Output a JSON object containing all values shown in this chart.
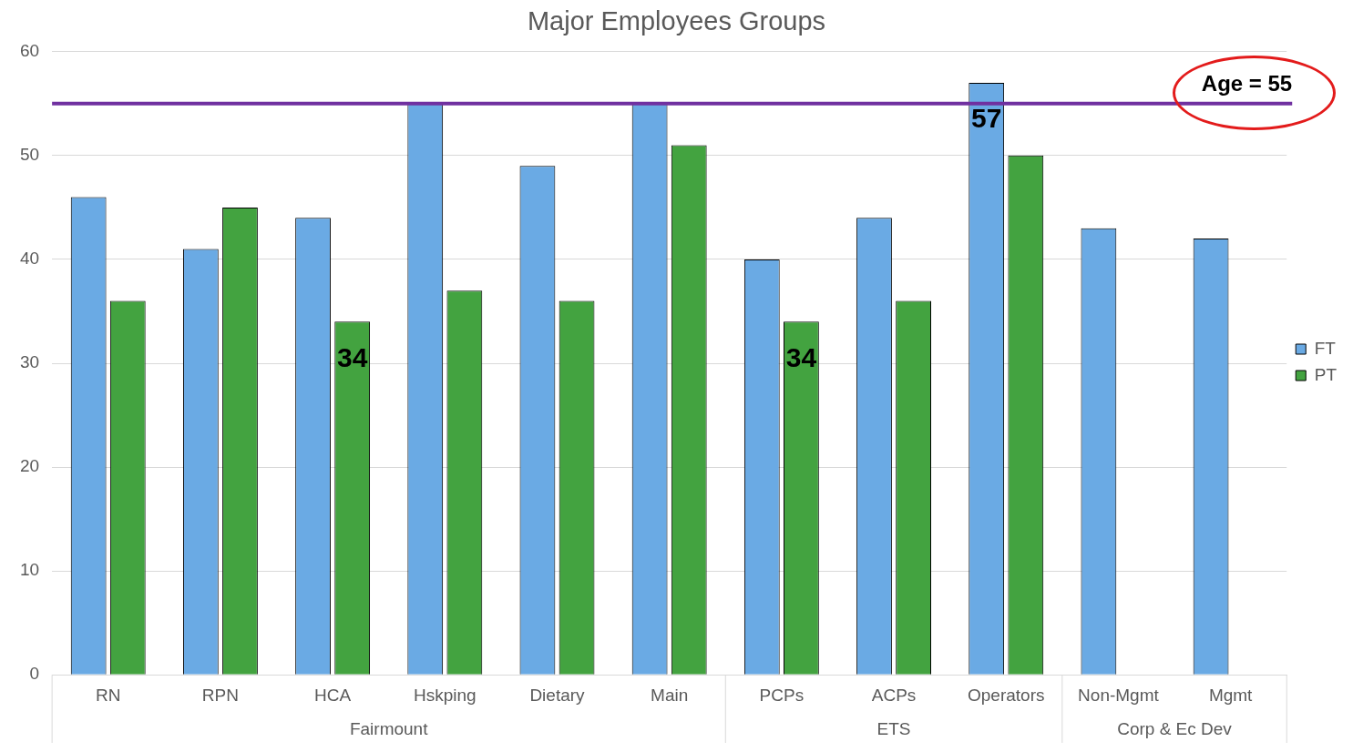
{
  "chart_data": {
    "type": "bar",
    "title": "Major Employees Groups",
    "categories": [
      "RN",
      "RPN",
      "HCA",
      "Hskping",
      "Dietary",
      "Main",
      "PCPs",
      "ACPs",
      "Operators",
      "Non-Mgmt",
      "Mgmt"
    ],
    "series": [
      {
        "name": "FT",
        "color": "#6aaae4",
        "values": [
          46,
          41,
          44,
          55,
          49,
          55,
          40,
          44,
          57,
          43,
          42
        ],
        "value_labels": [
          null,
          null,
          null,
          null,
          null,
          null,
          null,
          null,
          "57",
          null,
          null
        ]
      },
      {
        "name": "PT",
        "color": "#43a340",
        "values": [
          36,
          45,
          34,
          37,
          36,
          51,
          34,
          36,
          50,
          null,
          null
        ],
        "value_labels": [
          null,
          null,
          "34",
          null,
          null,
          null,
          "34",
          null,
          null,
          null,
          null
        ]
      }
    ],
    "annotations": [
      "Fairmount",
      "ETS",
      "Corp & Ec Dev"
    ],
    "ref_lines": [
      {
        "axis": "y",
        "value": 55,
        "label": "Age = 55",
        "color": "#7030a0"
      }
    ],
    "ylim": [
      0,
      60
    ],
    "yticks": [
      0,
      10,
      20,
      30,
      40,
      50,
      60
    ],
    "grid": "y",
    "legend": "right"
  }
}
